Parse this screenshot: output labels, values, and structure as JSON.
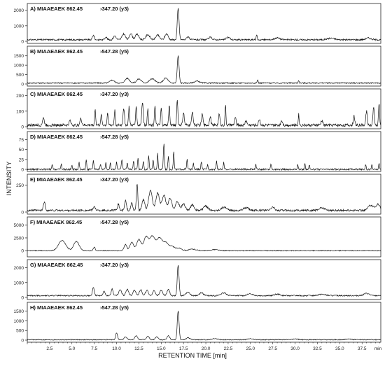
{
  "figure": {
    "ylabel": "INTENSITY",
    "xlabel": "RETENTION TIME [min]",
    "xticks": [
      "2.5",
      "5.0",
      "7.5",
      "10.0",
      "12.5",
      "15.0",
      "17.5",
      "20.0",
      "22.5",
      "25.0",
      "27.5",
      "30.0",
      "32.5",
      "35.0",
      "37.5",
      "min"
    ]
  },
  "chart_data": {
    "type": "line",
    "xlim": [
      0,
      39.6
    ],
    "xlabel": "RETENTION TIME [min]",
    "ylabel": "INTENSITY",
    "grid": false,
    "panels": [
      {
        "label": "A) MIAAEAEK 862.45",
        "transition": "347.20 (y3)",
        "ylim": [
          0,
          2300
        ],
        "yticks": [
          "0",
          "1000",
          "2000"
        ],
        "noise": 100,
        "baseline": 100,
        "peaks": [
          [
            7.4,
            300,
            0.1
          ],
          [
            8.8,
            180,
            0.12
          ],
          [
            9.8,
            250,
            0.15
          ],
          [
            10.8,
            380,
            0.18
          ],
          [
            11.6,
            420,
            0.15
          ],
          [
            12.3,
            350,
            0.2
          ],
          [
            13.5,
            330,
            0.22
          ],
          [
            14.6,
            300,
            0.2
          ],
          [
            15.6,
            380,
            0.18
          ],
          [
            16.9,
            2000,
            0.1
          ],
          [
            18.0,
            200,
            0.15
          ],
          [
            20.5,
            150,
            0.2
          ],
          [
            22.5,
            160,
            0.2
          ],
          [
            25.7,
            350,
            0.05
          ],
          [
            28.0,
            120,
            0.3
          ],
          [
            34.0,
            100,
            0.4
          ],
          [
            38.2,
            110,
            0.3
          ]
        ]
      },
      {
        "label": "B) MIAAEAEK 862.45",
        "transition": "547.28 (y5)",
        "ylim": [
          0,
          1900
        ],
        "yticks": [
          "0",
          "500",
          "1000",
          "1500"
        ],
        "noise": 60,
        "baseline": 50,
        "peaks": [
          [
            9.5,
            150,
            0.25
          ],
          [
            11.2,
            250,
            0.25
          ],
          [
            12.5,
            220,
            0.25
          ],
          [
            14.0,
            230,
            0.3
          ],
          [
            15.5,
            270,
            0.25
          ],
          [
            16.9,
            1450,
            0.1
          ],
          [
            19.0,
            100,
            0.3
          ],
          [
            25.8,
            180,
            0.05
          ],
          [
            30.4,
            150,
            0.05
          ]
        ]
      },
      {
        "label": "C) MIAAEAEK 862.45",
        "transition": "347.20 (y3)",
        "ylim": [
          0,
          230
        ],
        "yticks": [
          "0",
          "100",
          "200"
        ],
        "noise": 18,
        "baseline": 10,
        "peaks": [
          [
            1.8,
            45,
            0.1
          ],
          [
            4.8,
            30,
            0.1
          ],
          [
            6.0,
            40,
            0.1
          ],
          [
            7.6,
            100,
            0.06
          ],
          [
            8.3,
            70,
            0.06
          ],
          [
            9.0,
            80,
            0.06
          ],
          [
            9.8,
            95,
            0.06
          ],
          [
            10.8,
            110,
            0.08
          ],
          [
            11.4,
            120,
            0.06
          ],
          [
            12.2,
            130,
            0.06
          ],
          [
            12.9,
            150,
            0.08
          ],
          [
            13.5,
            110,
            0.06
          ],
          [
            14.3,
            130,
            0.06
          ],
          [
            15.0,
            110,
            0.06
          ],
          [
            15.9,
            130,
            0.06
          ],
          [
            16.8,
            170,
            0.06
          ],
          [
            17.5,
            80,
            0.08
          ],
          [
            18.5,
            90,
            0.08
          ],
          [
            19.6,
            70,
            0.08
          ],
          [
            20.5,
            60,
            0.08
          ],
          [
            21.5,
            70,
            0.08
          ],
          [
            22.2,
            130,
            0.05
          ],
          [
            23.3,
            50,
            0.08
          ],
          [
            24.5,
            30,
            0.1
          ],
          [
            26.0,
            40,
            0.08
          ],
          [
            28.5,
            30,
            0.1
          ],
          [
            30.4,
            70,
            0.05
          ],
          [
            33.0,
            30,
            0.1
          ],
          [
            36.6,
            60,
            0.08
          ],
          [
            38.0,
            90,
            0.08
          ],
          [
            38.8,
            110,
            0.08
          ],
          [
            39.4,
            140,
            0.06
          ]
        ]
      },
      {
        "label": "D) MIAAEAEK 862.45",
        "transition": "547.28 (y5)",
        "ylim": [
          0,
          90
        ],
        "yticks": [
          "0",
          "25",
          "50",
          "75"
        ],
        "noise": 4,
        "baseline": 0,
        "peaks": [
          [
            2.8,
            12,
            0.05
          ],
          [
            3.8,
            14,
            0.05
          ],
          [
            5.0,
            12,
            0.05
          ],
          [
            5.8,
            18,
            0.05
          ],
          [
            6.6,
            25,
            0.05
          ],
          [
            7.4,
            22,
            0.05
          ],
          [
            8.2,
            14,
            0.05
          ],
          [
            8.8,
            16,
            0.05
          ],
          [
            9.3,
            15,
            0.05
          ],
          [
            10.0,
            20,
            0.05
          ],
          [
            10.6,
            25,
            0.06
          ],
          [
            11.2,
            18,
            0.05
          ],
          [
            11.9,
            20,
            0.05
          ],
          [
            12.4,
            30,
            0.05
          ],
          [
            13.0,
            22,
            0.05
          ],
          [
            13.6,
            35,
            0.05
          ],
          [
            14.1,
            25,
            0.05
          ],
          [
            14.6,
            40,
            0.05
          ],
          [
            15.3,
            65,
            0.06
          ],
          [
            15.8,
            35,
            0.05
          ],
          [
            16.4,
            45,
            0.05
          ],
          [
            17.9,
            25,
            0.05
          ],
          [
            18.6,
            15,
            0.05
          ],
          [
            19.5,
            20,
            0.05
          ],
          [
            20.2,
            12,
            0.05
          ],
          [
            21.2,
            22,
            0.05
          ],
          [
            22.0,
            18,
            0.05
          ],
          [
            25.6,
            12,
            0.05
          ],
          [
            27.3,
            14,
            0.05
          ],
          [
            30.3,
            12,
            0.05
          ],
          [
            31.1,
            14,
            0.05
          ],
          [
            31.6,
            12,
            0.05
          ],
          [
            37.9,
            14,
            0.05
          ],
          [
            38.6,
            12,
            0.05
          ],
          [
            39.4,
            14,
            0.05
          ]
        ]
      },
      {
        "label": "E) MIAAEAEK 862.45",
        "transition": "347.20 (y3)",
        "ylim": [
          0,
          330
        ],
        "yticks": [
          "0",
          "250"
        ],
        "noise": 18,
        "baseline": 15,
        "peaks": [
          [
            1.9,
            80,
            0.1
          ],
          [
            7.5,
            30,
            0.15
          ],
          [
            10.2,
            60,
            0.1
          ],
          [
            11.0,
            90,
            0.1
          ],
          [
            11.7,
            70,
            0.1
          ],
          [
            12.3,
            240,
            0.08
          ],
          [
            13.0,
            100,
            0.15
          ],
          [
            13.8,
            180,
            0.2
          ],
          [
            14.6,
            160,
            0.2
          ],
          [
            15.3,
            140,
            0.2
          ],
          [
            16.0,
            110,
            0.2
          ],
          [
            16.8,
            80,
            0.2
          ],
          [
            17.5,
            60,
            0.2
          ],
          [
            18.5,
            50,
            0.2
          ],
          [
            20.0,
            40,
            0.25
          ],
          [
            22.0,
            30,
            0.3
          ],
          [
            24.5,
            25,
            0.3
          ],
          [
            27.5,
            30,
            0.2
          ],
          [
            33.0,
            25,
            0.3
          ],
          [
            38.5,
            50,
            0.3
          ],
          [
            39.3,
            60,
            0.2
          ]
        ]
      },
      {
        "label": "F) MIAAEAEK 862.45",
        "transition": "547.28 (y5)",
        "ylim": [
          -800,
          6200
        ],
        "yticks": [
          "0",
          "2500",
          "5000"
        ],
        "noise": 150,
        "baseline": 0,
        "peaks": [
          [
            3.9,
            2000,
            0.4
          ],
          [
            5.5,
            1800,
            0.3
          ],
          [
            7.5,
            700,
            0.1
          ],
          [
            11.0,
            1200,
            0.15
          ],
          [
            11.7,
            1600,
            0.2
          ],
          [
            12.5,
            2200,
            0.25
          ],
          [
            13.3,
            2600,
            0.25
          ],
          [
            14.0,
            2800,
            0.3
          ],
          [
            14.8,
            2400,
            0.3
          ],
          [
            15.5,
            1500,
            0.3
          ],
          [
            16.2,
            800,
            0.3
          ],
          [
            17.0,
            500,
            0.3
          ],
          [
            18.5,
            300,
            0.4
          ],
          [
            21.0,
            200,
            0.4
          ]
        ]
      },
      {
        "label": "G) MIAAEAEK 862.45",
        "transition": "347.20 (y3)",
        "ylim": [
          0,
          2400
        ],
        "yticks": [
          "0",
          "1000",
          "2000"
        ],
        "noise": 80,
        "baseline": 120,
        "peaks": [
          [
            7.4,
            550,
            0.1
          ],
          [
            8.6,
            300,
            0.1
          ],
          [
            9.5,
            450,
            0.1
          ],
          [
            10.4,
            400,
            0.15
          ],
          [
            11.2,
            420,
            0.15
          ],
          [
            12.0,
            380,
            0.15
          ],
          [
            12.7,
            400,
            0.15
          ],
          [
            13.4,
            350,
            0.15
          ],
          [
            14.2,
            330,
            0.15
          ],
          [
            15.0,
            380,
            0.15
          ],
          [
            15.8,
            420,
            0.15
          ],
          [
            16.9,
            2050,
            0.1
          ],
          [
            18.0,
            250,
            0.2
          ],
          [
            19.5,
            200,
            0.2
          ],
          [
            22.0,
            180,
            0.3
          ],
          [
            25.0,
            120,
            0.3
          ],
          [
            28.0,
            100,
            0.3
          ],
          [
            33.0,
            90,
            0.4
          ],
          [
            38.0,
            150,
            0.3
          ]
        ]
      },
      {
        "label": "H) MIAAEAEK 862.45",
        "transition": "547.28 (y5)",
        "ylim": [
          0,
          1850
        ],
        "yticks": [
          "0",
          "500",
          "1000",
          "1500"
        ],
        "noise": 40,
        "baseline": 20,
        "peaks": [
          [
            10.0,
            350,
            0.1
          ],
          [
            11.0,
            150,
            0.15
          ],
          [
            12.2,
            200,
            0.15
          ],
          [
            13.5,
            180,
            0.15
          ],
          [
            14.5,
            150,
            0.15
          ],
          [
            15.8,
            200,
            0.15
          ],
          [
            16.9,
            1500,
            0.1
          ],
          [
            18.0,
            100,
            0.2
          ],
          [
            21.0,
            60,
            0.3
          ],
          [
            25.0,
            50,
            0.3
          ],
          [
            30.0,
            40,
            0.3
          ],
          [
            36.0,
            40,
            0.3
          ]
        ]
      }
    ]
  }
}
